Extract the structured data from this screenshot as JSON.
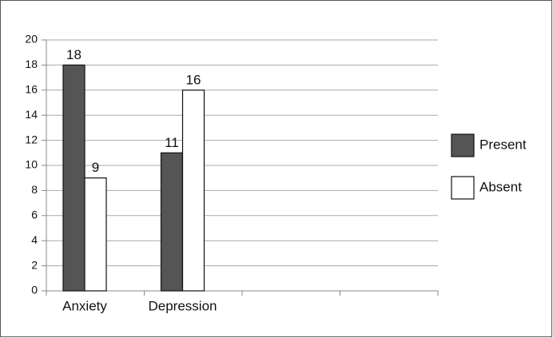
{
  "chart_data": {
    "type": "bar",
    "categories": [
      "Anxiety",
      "Depression",
      null,
      null
    ],
    "series": [
      {
        "name": "Present",
        "color": "#555555",
        "values": [
          18,
          11,
          null,
          null
        ]
      },
      {
        "name": "Absent",
        "color": "#ffffff",
        "values": [
          9,
          16,
          null,
          null
        ]
      }
    ],
    "ylim": [
      0,
      20
    ],
    "yticks": [
      0,
      2,
      4,
      6,
      8,
      10,
      12,
      14,
      16,
      18,
      20
    ],
    "grid": true,
    "legend": "right"
  }
}
